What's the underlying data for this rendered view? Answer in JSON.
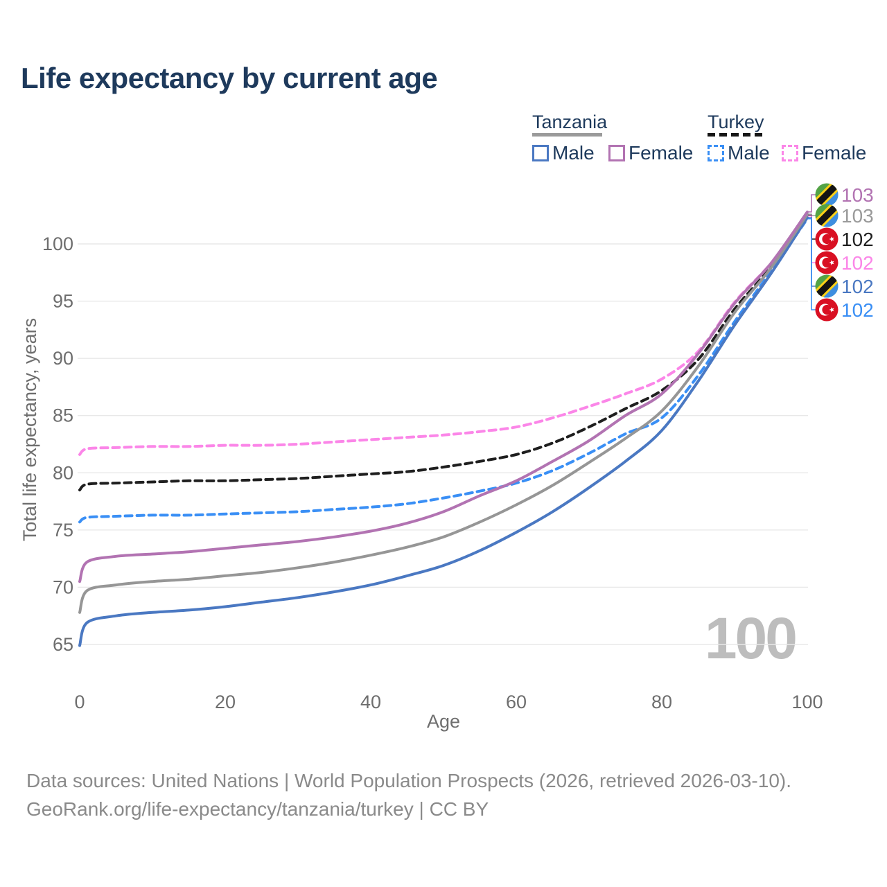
{
  "page": {
    "title": "Life expectancy by current age",
    "watermark": "100",
    "footer_line1": "Data sources: United Nations | World Population Prospects (2026, retrieved 2026-03-10).",
    "footer_line2": "GeoRank.org/life-expectancy/tanzania/turkey | CC BY"
  },
  "legend": {
    "groups": [
      {
        "label": "Tanzania",
        "line_style": "solid",
        "underline_color": "#9a9a9a",
        "items": [
          {
            "label": "Male",
            "color": "#4a78c2"
          },
          {
            "label": "Female",
            "color": "#b273b2"
          }
        ]
      },
      {
        "label": "Turkey",
        "line_style": "dashed",
        "underline_color": "#161616",
        "items": [
          {
            "label": "Male",
            "color": "#3a8ff5"
          },
          {
            "label": "Female",
            "color": "#fb86e8"
          }
        ]
      }
    ]
  },
  "chart_data": {
    "type": "line",
    "title": "Life expectancy by current age",
    "xlabel": "Age",
    "ylabel": "Total life expectancy, years",
    "xlim": [
      0,
      100
    ],
    "ylim": [
      63,
      104
    ],
    "xticks": [
      0,
      20,
      40,
      60,
      80,
      100
    ],
    "yticks": [
      65,
      70,
      75,
      80,
      85,
      90,
      95,
      100
    ],
    "grid": "horizontal",
    "legend_position": "top-right",
    "ages": [
      0,
      1,
      5,
      10,
      15,
      20,
      25,
      30,
      35,
      40,
      45,
      50,
      55,
      60,
      65,
      70,
      75,
      80,
      85,
      90,
      95,
      100
    ],
    "series": [
      {
        "name": "Turkey Male",
        "country": "turkey",
        "sex": "male",
        "color": "#3a8ff5",
        "dash": true,
        "values": [
          75.7,
          76.1,
          76.2,
          76.3,
          76.3,
          76.4,
          76.5,
          76.6,
          76.8,
          77.0,
          77.3,
          77.8,
          78.4,
          79.1,
          80.2,
          81.7,
          83.4,
          84.8,
          88.5,
          93.2,
          97.6,
          102.2
        ]
      },
      {
        "name": "Turkey",
        "country": "turkey",
        "sex": "both",
        "color": "#1f1f1f",
        "dash": true,
        "values": [
          78.5,
          79.0,
          79.1,
          79.2,
          79.3,
          79.3,
          79.4,
          79.5,
          79.7,
          79.9,
          80.1,
          80.5,
          81.0,
          81.6,
          82.6,
          84.0,
          85.6,
          87.2,
          89.9,
          94.3,
          98.0,
          102.5
        ]
      },
      {
        "name": "Turkey Female",
        "country": "turkey",
        "sex": "female",
        "color": "#fb86e8",
        "dash": true,
        "values": [
          81.6,
          82.1,
          82.2,
          82.3,
          82.3,
          82.4,
          82.4,
          82.5,
          82.7,
          82.9,
          83.1,
          83.3,
          83.6,
          84.0,
          84.8,
          85.8,
          86.9,
          88.2,
          90.6,
          94.9,
          98.3,
          102.45
        ]
      },
      {
        "name": "Tanzania Male",
        "country": "tanzania",
        "sex": "male",
        "color": "#4a78c2",
        "dash": false,
        "values": [
          64.9,
          66.9,
          67.5,
          67.8,
          68.0,
          68.3,
          68.7,
          69.1,
          69.6,
          70.2,
          71.0,
          71.9,
          73.2,
          74.8,
          76.6,
          78.7,
          81.0,
          83.7,
          88.0,
          92.9,
          97.4,
          102.3
        ]
      },
      {
        "name": "Tanzania",
        "country": "tanzania",
        "sex": "both",
        "color": "#969696",
        "dash": false,
        "values": [
          67.8,
          69.7,
          70.2,
          70.5,
          70.7,
          71.0,
          71.3,
          71.7,
          72.2,
          72.8,
          73.5,
          74.4,
          75.7,
          77.2,
          78.9,
          80.9,
          83.0,
          85.4,
          89.3,
          94.0,
          97.9,
          102.6
        ]
      },
      {
        "name": "Tanzania Female",
        "country": "tanzania",
        "sex": "female",
        "color": "#b273b2",
        "dash": false,
        "values": [
          70.5,
          72.2,
          72.7,
          72.9,
          73.1,
          73.4,
          73.7,
          74.0,
          74.4,
          74.9,
          75.6,
          76.6,
          78.0,
          79.3,
          81.0,
          82.8,
          85.0,
          86.9,
          90.4,
          94.8,
          98.3,
          102.8
        ]
      }
    ],
    "end_labels": [
      {
        "series": "Tanzania Female",
        "flag": "tanzania",
        "value": "103",
        "color": "#b273b2"
      },
      {
        "series": "Tanzania",
        "flag": "tanzania",
        "value": "103",
        "color": "#9a9a9a"
      },
      {
        "series": "Turkey",
        "flag": "turkey",
        "value": "102",
        "color": "#1f1f1f"
      },
      {
        "series": "Turkey Female",
        "flag": "turkey",
        "value": "102",
        "color": "#fb86e8"
      },
      {
        "series": "Tanzania Male",
        "flag": "tanzania",
        "value": "102",
        "color": "#4a78c2"
      },
      {
        "series": "Turkey Male",
        "flag": "turkey",
        "value": "102",
        "color": "#3a8ff5"
      }
    ],
    "flag_colors": {
      "tanzania": {
        "green": "#53a346",
        "blue": "#3e8ee0",
        "yellow": "#fcd116",
        "black": "#141414"
      },
      "turkey": {
        "red": "#d91023",
        "white": "#ffffff"
      }
    }
  }
}
